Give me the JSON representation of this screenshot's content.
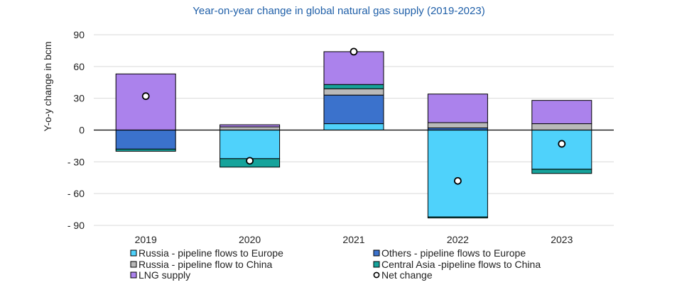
{
  "chart_data": {
    "type": "bar",
    "stacked": true,
    "title": "Year-on-year change in global natural gas supply (2019-2023)",
    "ylabel": "Y-o-y change in bcm",
    "xlabel": "",
    "ylim": [
      -90,
      90
    ],
    "yticks": [
      90,
      60,
      30,
      0,
      -30,
      -60,
      -90
    ],
    "ytick_labels": [
      "90",
      "60",
      "30",
      "0",
      "- 30",
      "- 60",
      "- 90"
    ],
    "grid": true,
    "legend_position": "bottom",
    "categories": [
      "2019",
      "2020",
      "2021",
      "2022",
      "2023"
    ],
    "series": [
      {
        "name": "Russia - pipeline flows to Europe",
        "color": "#4fd2fb",
        "values": [
          0,
          -27,
          6,
          -82,
          -37
        ]
      },
      {
        "name": "Others - pipeline flows to Europe",
        "color": "#3b72cc",
        "values": [
          -18,
          0,
          27,
          2,
          0
        ]
      },
      {
        "name": "Russia - pipeline flow to China",
        "color": "#b9b9b9",
        "values": [
          0,
          3,
          6,
          5,
          6
        ]
      },
      {
        "name": "Central Asia -pipeline flows to China",
        "color": "#16a39b",
        "values": [
          -2,
          -8,
          4,
          -1,
          -4
        ]
      },
      {
        "name": "LNG supply",
        "color": "#ab82ec",
        "values": [
          53,
          2,
          31,
          27,
          22
        ]
      }
    ],
    "net_change": {
      "name": "Net change",
      "values": [
        32,
        -29,
        74,
        -48,
        -13
      ]
    }
  }
}
